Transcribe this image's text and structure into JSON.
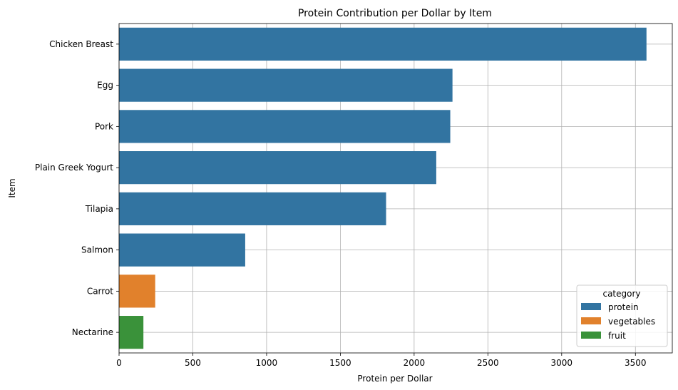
{
  "chart_data": {
    "type": "bar",
    "orientation": "horizontal",
    "title": "Protein Contribution per Dollar by Item",
    "xlabel": "Protein per Dollar",
    "ylabel": "Item",
    "xlim": [
      0,
      3750
    ],
    "xticks": [
      0,
      500,
      1000,
      1500,
      2000,
      2500,
      3000,
      3500
    ],
    "grid": true,
    "legend_placement": "bottom-right",
    "legend_title": "category",
    "categories": [
      "Chicken Breast",
      "Egg",
      "Pork",
      "Plain Greek Yogurt",
      "Tilapia",
      "Salmon",
      "Carrot",
      "Nectarine"
    ],
    "values": [
      3575,
      2260,
      2245,
      2150,
      1810,
      855,
      245,
      165
    ],
    "bar_category": [
      "protein",
      "protein",
      "protein",
      "protein",
      "protein",
      "protein",
      "vegetables",
      "fruit"
    ],
    "legend": [
      {
        "name": "protein",
        "color": "#3274a1"
      },
      {
        "name": "vegetables",
        "color": "#e1812c"
      },
      {
        "name": "fruit",
        "color": "#3a923a"
      }
    ]
  }
}
